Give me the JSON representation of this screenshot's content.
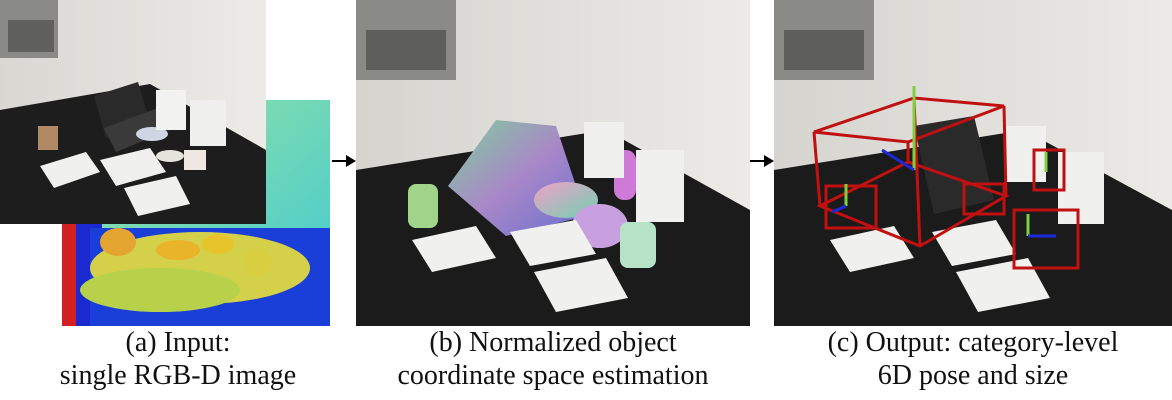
{
  "figure": {
    "panels": [
      {
        "id": "a",
        "caption_line1": "(a) Input:",
        "caption_line2": "single RGB-D image"
      },
      {
        "id": "b",
        "caption_line1": "(b) Normalized object",
        "caption_line2": "coordinate space estimation"
      },
      {
        "id": "c",
        "caption_line1": "(c) Output: category-level",
        "caption_line2": "6D pose and size"
      }
    ]
  }
}
